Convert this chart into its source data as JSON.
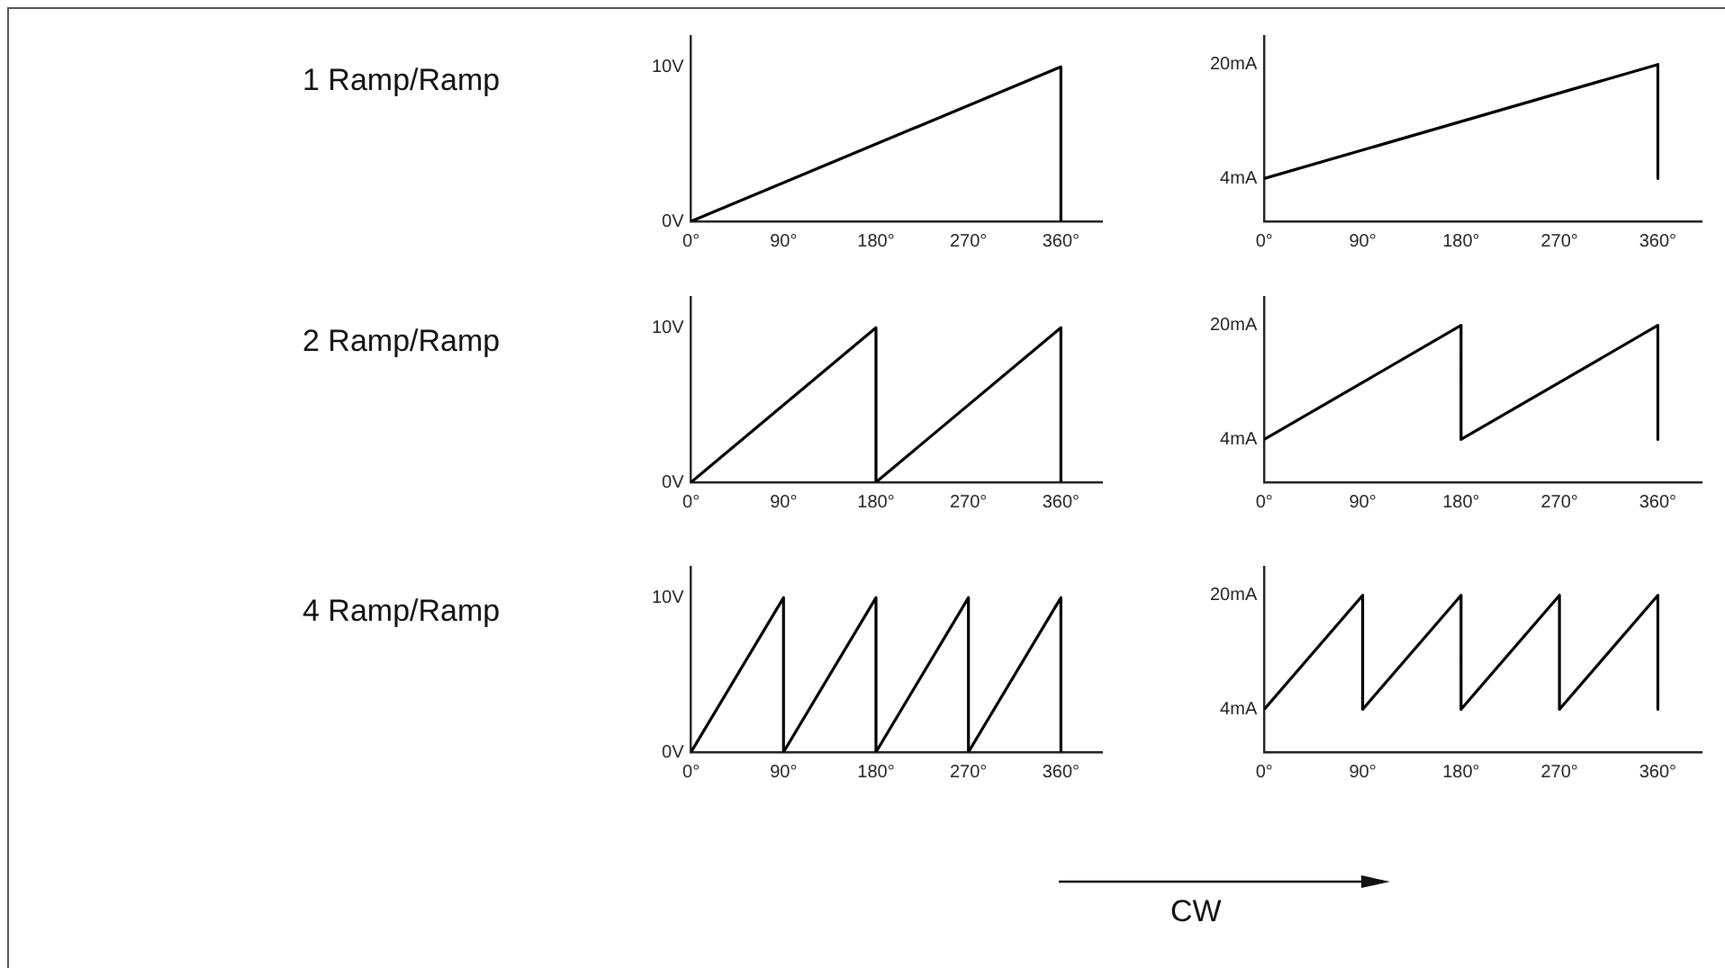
{
  "chart_data": [
    {
      "type": "line",
      "title": "1 Ramp/Ramp",
      "x": [
        0,
        360,
        360
      ],
      "values": [
        0,
        10,
        0
      ],
      "color": "#000000",
      "marker": "none",
      "xlim": [
        0,
        400
      ],
      "ylim": [
        0,
        12
      ],
      "xticks": [
        {
          "value": 0,
          "label": "0°"
        },
        {
          "value": 90,
          "label": "90°"
        },
        {
          "value": 180,
          "label": "180°"
        },
        {
          "value": 270,
          "label": "270°"
        },
        {
          "value": 360,
          "label": "360°"
        }
      ],
      "yticks": [
        {
          "value": 0,
          "label": "0V"
        },
        {
          "value": 10,
          "label": "10V"
        }
      ]
    },
    {
      "type": "line",
      "x": [
        0,
        360,
        360
      ],
      "values": [
        4,
        20,
        4
      ],
      "color": "#000000",
      "marker": "none",
      "xlim": [
        0,
        400
      ],
      "ylim": [
        -2,
        24
      ],
      "xticks": [
        {
          "value": 0,
          "label": "0°"
        },
        {
          "value": 90,
          "label": "90°"
        },
        {
          "value": 180,
          "label": "180°"
        },
        {
          "value": 270,
          "label": "270°"
        },
        {
          "value": 360,
          "label": "360°"
        }
      ],
      "yticks": [
        {
          "value": 4,
          "label": "4mA"
        },
        {
          "value": 20,
          "label": "20mA"
        }
      ]
    },
    {
      "type": "line",
      "title": "2 Ramp/Ramp",
      "x": [
        0,
        180,
        180,
        360,
        360
      ],
      "values": [
        0,
        10,
        0,
        10,
        0
      ],
      "color": "#000000",
      "marker": "none",
      "xlim": [
        0,
        400
      ],
      "ylim": [
        0,
        12
      ],
      "xticks": [
        {
          "value": 0,
          "label": "0°"
        },
        {
          "value": 90,
          "label": "90°"
        },
        {
          "value": 180,
          "label": "180°"
        },
        {
          "value": 270,
          "label": "270°"
        },
        {
          "value": 360,
          "label": "360°"
        }
      ],
      "yticks": [
        {
          "value": 0,
          "label": "0V"
        },
        {
          "value": 10,
          "label": "10V"
        }
      ]
    },
    {
      "type": "line",
      "x": [
        0,
        180,
        180,
        360,
        360
      ],
      "values": [
        4,
        20,
        4,
        20,
        4
      ],
      "color": "#000000",
      "marker": "none",
      "xlim": [
        0,
        400
      ],
      "ylim": [
        -2,
        24
      ],
      "xticks": [
        {
          "value": 0,
          "label": "0°"
        },
        {
          "value": 90,
          "label": "90°"
        },
        {
          "value": 180,
          "label": "180°"
        },
        {
          "value": 270,
          "label": "270°"
        },
        {
          "value": 360,
          "label": "360°"
        }
      ],
      "yticks": [
        {
          "value": 4,
          "label": "4mA"
        },
        {
          "value": 20,
          "label": "20mA"
        }
      ]
    },
    {
      "type": "line",
      "title": "4 Ramp/Ramp",
      "x": [
        0,
        90,
        90,
        180,
        180,
        270,
        270,
        360,
        360
      ],
      "values": [
        0,
        10,
        0,
        10,
        0,
        10,
        0,
        10,
        0
      ],
      "color": "#000000",
      "marker": "none",
      "xlim": [
        0,
        400
      ],
      "ylim": [
        0,
        12
      ],
      "xticks": [
        {
          "value": 0,
          "label": "0°"
        },
        {
          "value": 90,
          "label": "90°"
        },
        {
          "value": 180,
          "label": "180°"
        },
        {
          "value": 270,
          "label": "270°"
        },
        {
          "value": 360,
          "label": "360°"
        }
      ],
      "yticks": [
        {
          "value": 0,
          "label": "0V"
        },
        {
          "value": 10,
          "label": "10V"
        }
      ]
    },
    {
      "type": "line",
      "x": [
        0,
        90,
        90,
        180,
        180,
        270,
        270,
        360,
        360
      ],
      "values": [
        4,
        20,
        4,
        20,
        4,
        20,
        4,
        20,
        4
      ],
      "color": "#000000",
      "marker": "none",
      "xlim": [
        0,
        400
      ],
      "ylim": [
        -2,
        24
      ],
      "xticks": [
        {
          "value": 0,
          "label": "0°"
        },
        {
          "value": 90,
          "label": "90°"
        },
        {
          "value": 180,
          "label": "180°"
        },
        {
          "value": 270,
          "label": "270°"
        },
        {
          "value": 360,
          "label": "360°"
        }
      ],
      "yticks": [
        {
          "value": 4,
          "label": "4mA"
        },
        {
          "value": 20,
          "label": "20mA"
        }
      ],
      "annotations": [
        "CW"
      ]
    }
  ]
}
